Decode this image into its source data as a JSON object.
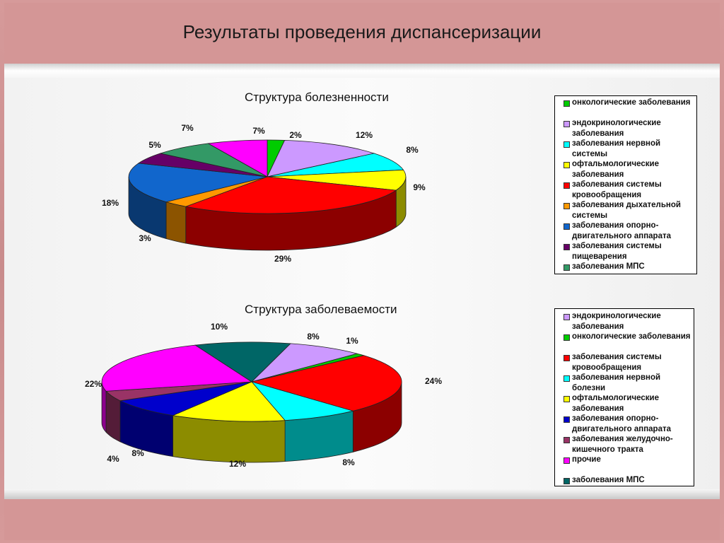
{
  "page": {
    "title": "Результаты проведения диспансеризации"
  },
  "chart_data": [
    {
      "type": "pie",
      "title": "Структура болезненности",
      "legend_position": "right",
      "slices": [
        {
          "label": "онкологические заболевания",
          "value": 2,
          "value_label": "2%",
          "color": "#00cc00"
        },
        {
          "label": "эндокринологические заболевания",
          "value": 12,
          "value_label": "12%",
          "color": "#cc99ff"
        },
        {
          "label": "заболевания нервной системы",
          "value": 8,
          "value_label": "8%",
          "color": "#00ffff"
        },
        {
          "label": "офтальмологические заболевания",
          "value": 9,
          "value_label": "9%",
          "color": "#ffff00"
        },
        {
          "label": "заболевания системы кровообращения",
          "value": 29,
          "value_label": "29%",
          "color": "#ff0000"
        },
        {
          "label": "заболевания дыхательной системы",
          "value": 3,
          "value_label": "3%",
          "color": "#ff9900"
        },
        {
          "label": "заболевания опорно-двигательного аппарата",
          "value": 18,
          "value_label": "18%",
          "color": "#1166cc"
        },
        {
          "label": "заболевания системы пищеварения",
          "value": 5,
          "value_label": "5%",
          "color": "#660066"
        },
        {
          "label": "заболевания МПС",
          "value": 7,
          "value_label": "7%",
          "color": "#339966"
        },
        {
          "label": "",
          "value": 7,
          "value_label": "7%",
          "color": "#ff00ff"
        }
      ]
    },
    {
      "type": "pie",
      "title": "Структура заболеваемости",
      "legend_position": "right",
      "slices": [
        {
          "label": "эндокринологические заболевания",
          "value": 8,
          "value_label": "8%",
          "color": "#cc99ff"
        },
        {
          "label": "онкологические заболевания",
          "value": 1,
          "value_label": "1%",
          "color": "#00cc00"
        },
        {
          "label": "заболевания системы кровообращения",
          "value": 24,
          "value_label": "24%",
          "color": "#ff0000"
        },
        {
          "label": "заболевания нервной болезни",
          "value": 8,
          "value_label": "8%",
          "color": "#00ffff"
        },
        {
          "label": "офтальмологические заболевания",
          "value": 12,
          "value_label": "12%",
          "color": "#ffff00"
        },
        {
          "label": "заболевания опорно-двигательного аппарата",
          "value": 8,
          "value_label": "8%",
          "color": "#0000cc"
        },
        {
          "label": "заболевания желудочно-кишечного тракта",
          "value": 4,
          "value_label": "4%",
          "color": "#993366"
        },
        {
          "label": "прочие",
          "value": 22,
          "value_label": "22%",
          "color": "#ff00ff"
        },
        {
          "label": "заболевания МПС",
          "value": 10,
          "value_label": "10%",
          "color": "#006666"
        }
      ]
    }
  ]
}
